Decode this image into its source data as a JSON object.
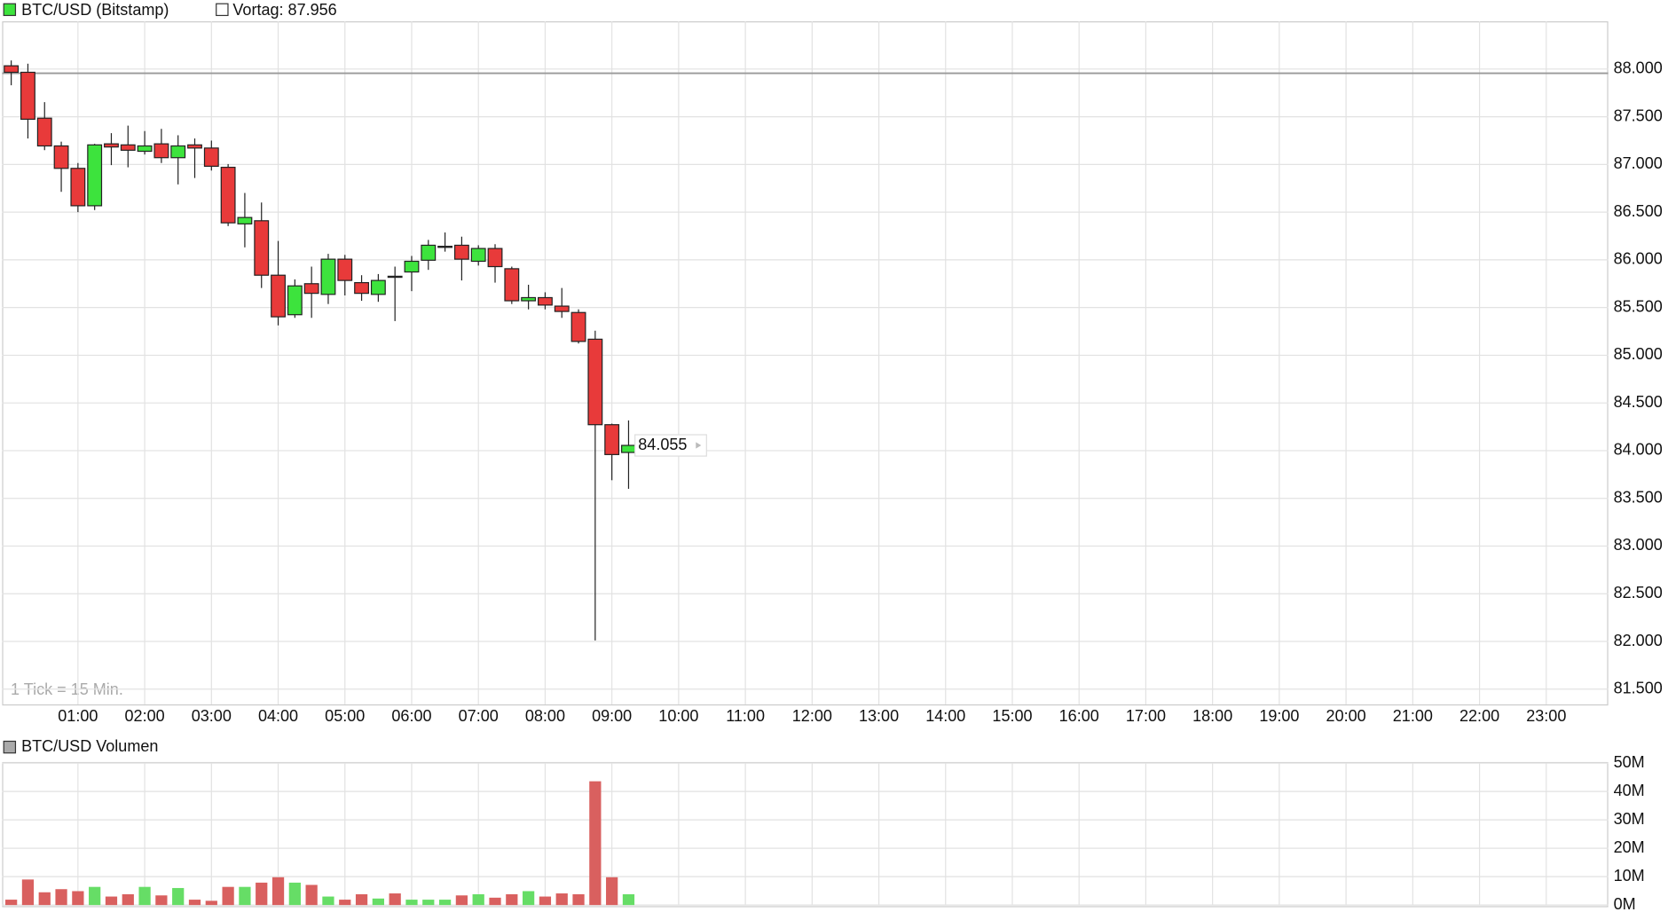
{
  "chart_data": {
    "type": "candlestick",
    "title": "BTC/USD (Bitstamp)",
    "previous_close_label": "Vortag: 87.956",
    "previous_close": 87956,
    "note": "1 Tick = 15 Min.",
    "colors": {
      "up": "#3de33d",
      "down": "#e83a3a"
    },
    "open": [
      88034,
      87966,
      87485,
      87194,
      86959,
      86567,
      87216,
      87205,
      87138,
      87216,
      87071,
      87205,
      87172,
      86970,
      86377,
      86410,
      85839,
      85425,
      85750,
      85638,
      86007,
      85761,
      85638,
      85828,
      85873,
      85996,
      86131,
      86153,
      85985,
      86119,
      85907,
      85571,
      85604,
      85515,
      85448,
      85168,
      84272,
      83981
    ],
    "high": [
      88090,
      88056,
      87653,
      87239,
      87015,
      87216,
      87328,
      87407,
      87350,
      87373,
      87306,
      87272,
      87250,
      87004,
      86701,
      86601,
      86198,
      85795,
      85929,
      86063,
      86052,
      85839,
      85851,
      85929,
      86041,
      86209,
      86287,
      86243,
      86153,
      86164,
      85929,
      85739,
      85660,
      85705,
      85481,
      85257,
      84283,
      84317
    ],
    "low": [
      87830,
      87272,
      87150,
      86713,
      86500,
      86522,
      86993,
      86970,
      87104,
      87015,
      86791,
      86858,
      86936,
      86354,
      86131,
      85705,
      85313,
      85392,
      85392,
      85537,
      85627,
      85571,
      85560,
      85358,
      85672,
      85895,
      86086,
      85784,
      85940,
      85761,
      85537,
      85481,
      85481,
      85392,
      85123,
      82011,
      83690,
      83600
    ],
    "close": [
      87966,
      87474,
      87194,
      86959,
      86567,
      87205,
      87183,
      87149,
      87194,
      87071,
      87194,
      87172,
      86981,
      86388,
      86444,
      85839,
      85403,
      85727,
      85649,
      86007,
      85784,
      85649,
      85784,
      85817,
      85985,
      86153,
      86142,
      86007,
      86119,
      85929,
      85571,
      85604,
      85526,
      85459,
      85145,
      84272,
      83959,
      84055
    ],
    "last_price": {
      "value": 84055,
      "label": "84.055"
    },
    "xlim": [
      0,
      24
    ],
    "xticks": [
      {
        "value": 1,
        "label": "01:00"
      },
      {
        "value": 2,
        "label": "02:00"
      },
      {
        "value": 3,
        "label": "03:00"
      },
      {
        "value": 4,
        "label": "04:00"
      },
      {
        "value": 5,
        "label": "05:00"
      },
      {
        "value": 6,
        "label": "06:00"
      },
      {
        "value": 7,
        "label": "07:00"
      },
      {
        "value": 8,
        "label": "08:00"
      },
      {
        "value": 9,
        "label": "09:00"
      },
      {
        "value": 10,
        "label": "10:00"
      },
      {
        "value": 11,
        "label": "11:00"
      },
      {
        "value": 12,
        "label": "12:00"
      },
      {
        "value": 13,
        "label": "13:00"
      },
      {
        "value": 14,
        "label": "14:00"
      },
      {
        "value": 15,
        "label": "15:00"
      },
      {
        "value": 16,
        "label": "16:00"
      },
      {
        "value": 17,
        "label": "17:00"
      },
      {
        "value": 18,
        "label": "18:00"
      },
      {
        "value": 19,
        "label": "19:00"
      },
      {
        "value": 20,
        "label": "20:00"
      },
      {
        "value": 21,
        "label": "21:00"
      },
      {
        "value": 22,
        "label": "22:00"
      },
      {
        "value": 23,
        "label": "23:00"
      }
    ],
    "ylim": [
      81340,
      88500
    ],
    "yticks": [
      {
        "value": 81500,
        "label": "81.500"
      },
      {
        "value": 82000,
        "label": "82.000"
      },
      {
        "value": 82500,
        "label": "82.500"
      },
      {
        "value": 83000,
        "label": "83.000"
      },
      {
        "value": 83500,
        "label": "83.500"
      },
      {
        "value": 84000,
        "label": "84.000"
      },
      {
        "value": 84500,
        "label": "84.500"
      },
      {
        "value": 85000,
        "label": "85.000"
      },
      {
        "value": 85500,
        "label": "85.500"
      },
      {
        "value": 86000,
        "label": "86.000"
      },
      {
        "value": 86500,
        "label": "86.500"
      },
      {
        "value": 87000,
        "label": "87.000"
      },
      {
        "value": 87500,
        "label": "87.500"
      },
      {
        "value": 88000,
        "label": "88.000"
      }
    ],
    "grid": true,
    "volume": {
      "title": "BTC/USD Volumen",
      "values": [
        1.9,
        9.0,
        4.5,
        5.6,
        4.9,
        6.4,
        3.0,
        3.8,
        6.4,
        3.4,
        6.0,
        1.9,
        1.5,
        6.4,
        6.4,
        7.9,
        9.8,
        7.9,
        7.1,
        3.0,
        1.9,
        3.8,
        2.3,
        4.1,
        1.9,
        1.9,
        1.9,
        3.4,
        3.8,
        2.6,
        3.8,
        4.9,
        3.0,
        4.1,
        3.8,
        43.6,
        9.8,
        3.8
      ],
      "colors": {
        "up": "#66dd66",
        "down": "#d9605f"
      },
      "ylim": [
        0,
        50
      ],
      "yticks": [
        {
          "value": 0,
          "label": "0M"
        },
        {
          "value": 10,
          "label": "10M"
        },
        {
          "value": 20,
          "label": "20M"
        },
        {
          "value": 30,
          "label": "30M"
        },
        {
          "value": 40,
          "label": "40M"
        },
        {
          "value": 50,
          "label": "50M"
        }
      ]
    }
  }
}
